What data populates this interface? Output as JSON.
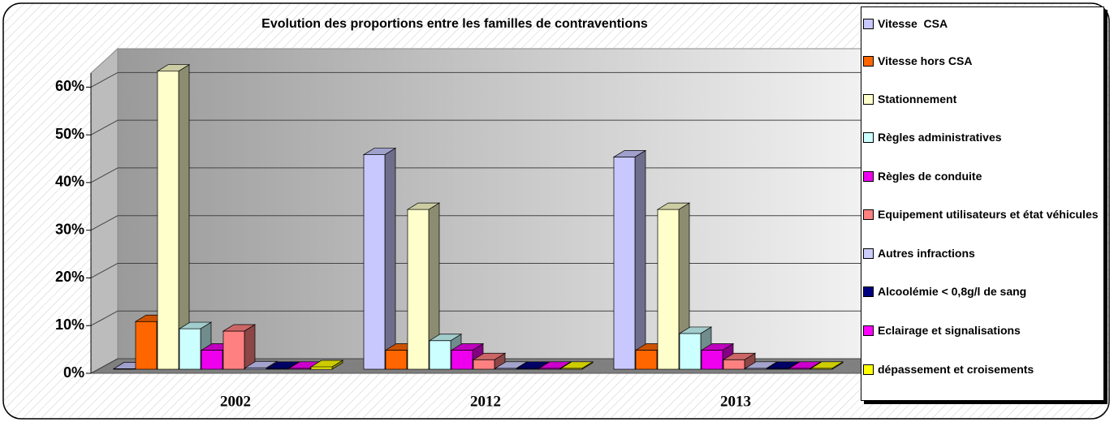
{
  "chart_data": {
    "type": "bar3d",
    "title": "Evolution des proportions entre les familles de contraventions",
    "categories": [
      "2002",
      "2012",
      "2013"
    ],
    "ylim": [
      0,
      65
    ],
    "yticks": [
      {
        "value": 0,
        "label": "0%"
      },
      {
        "value": 10,
        "label": "10%"
      },
      {
        "value": 20,
        "label": "20%"
      },
      {
        "value": 30,
        "label": "30%"
      },
      {
        "value": 40,
        "label": "40%"
      },
      {
        "value": 50,
        "label": "50%"
      },
      {
        "value": 60,
        "label": "60%"
      }
    ],
    "grid": true,
    "legend": "right",
    "series": [
      {
        "name": "Vitesse  CSA",
        "color": "#c8c8ff",
        "values": [
          0.1,
          45,
          44.5
        ]
      },
      {
        "name": "Vitesse hors CSA",
        "color": "#ff6600",
        "values": [
          10,
          4,
          4
        ]
      },
      {
        "name": "Stationnement",
        "color": "#ffffcc",
        "values": [
          62.5,
          33.5,
          33.5
        ]
      },
      {
        "name": "Règles administratives",
        "color": "#ccffff",
        "values": [
          8.5,
          6,
          7.5
        ]
      },
      {
        "name": "Règles de conduite",
        "color": "#ee00ee",
        "values": [
          4,
          4,
          4
        ]
      },
      {
        "name": "Equipement utilisateurs et état véhicules",
        "color": "#ff8080",
        "values": [
          8,
          2,
          2
        ]
      },
      {
        "name": "Autres infractions",
        "color": "#ccccff",
        "values": [
          0.3,
          0.2,
          0.2
        ]
      },
      {
        "name": "Alcoolémie < 0,8g/l de sang",
        "color": "#000080",
        "values": [
          0.2,
          0.2,
          0.2
        ]
      },
      {
        "name": "Eclairage et signalisations",
        "color": "#ff00ff",
        "values": [
          0.2,
          0.2,
          0.2
        ]
      },
      {
        "name": "dépassement et croisements",
        "color": "#ffff00",
        "values": [
          0.5,
          0.2,
          0.2
        ]
      }
    ]
  }
}
